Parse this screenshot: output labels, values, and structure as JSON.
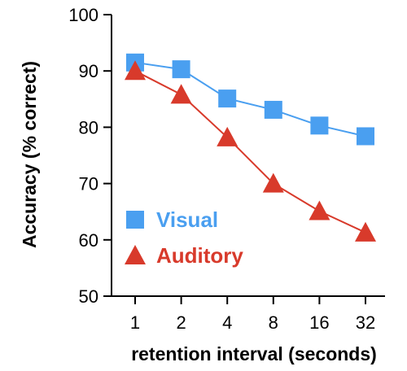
{
  "chart_data": {
    "type": "line",
    "xlabel": "retention interval (seconds)",
    "ylabel": "Accuracy (% correct)",
    "x_scale": "log",
    "ylim": [
      50,
      100
    ],
    "y_ticks": [
      50,
      60,
      70,
      80,
      90,
      100
    ],
    "x": [
      1,
      2,
      4,
      8,
      16,
      32
    ],
    "x_tick_labels": [
      "1",
      "2",
      "4",
      "8",
      "16",
      "32"
    ],
    "grid": false,
    "legend_placement": "bottom-left",
    "series": [
      {
        "name": "Visual",
        "marker": "square",
        "color": "#4a9ff0",
        "values": [
          91.5,
          90.3,
          85.1,
          83.1,
          80.3,
          78.4
        ]
      },
      {
        "name": "Auditory",
        "marker": "triangle",
        "color": "#d83a2b",
        "values": [
          90.0,
          85.8,
          78.2,
          70.0,
          65.1,
          61.3
        ]
      }
    ]
  }
}
